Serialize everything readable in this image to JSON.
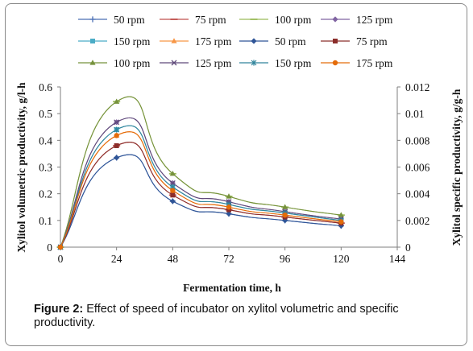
{
  "chart_data": {
    "type": "line",
    "x": [
      0,
      24,
      48,
      72,
      96,
      120
    ],
    "xlabel": "Fermentation time, h",
    "ylabel_left": "Xylitol volumetric productivity, g/l-h",
    "ylabel_right": "Xylitol specific productivity, g/g-h",
    "xticks": [
      "0",
      "24",
      "48",
      "72",
      "96",
      "120",
      "144"
    ],
    "xlim": [
      0,
      144
    ],
    "yticks_left": [
      "0",
      "0.1",
      "0.2",
      "0.3",
      "0.4",
      "0.5",
      "0.6"
    ],
    "ylim_left": [
      0,
      0.6
    ],
    "yticks_right": [
      "0",
      "0.002",
      "0.004",
      "0.006",
      "0.008",
      "0.01",
      "0.012"
    ],
    "ylim_right": [
      0,
      0.012
    ],
    "grid": false,
    "legend_position": "top",
    "series": [
      {
        "name": "50 rpm",
        "axis": "left",
        "marker": "plus",
        "color": "#4a6fb5",
        "values": [
          0,
          0.335,
          0.172,
          0.125,
          0.1,
          0.08
        ]
      },
      {
        "name": "75 rpm",
        "axis": "left",
        "marker": "dash",
        "color": "#c0504d",
        "values": [
          0,
          0.38,
          0.195,
          0.14,
          0.113,
          0.09
        ]
      },
      {
        "name": "100 rpm",
        "axis": "left",
        "marker": "dash",
        "color": "#9bbb59",
        "values": [
          0,
          0.545,
          0.275,
          0.19,
          0.15,
          0.12
        ]
      },
      {
        "name": "125 rpm",
        "axis": "left",
        "marker": "diamond",
        "color": "#8064a2",
        "values": [
          0,
          0.468,
          0.24,
          0.17,
          0.133,
          0.105
        ]
      },
      {
        "name": "150 rpm",
        "axis": "left",
        "marker": "square",
        "color": "#4bacc6",
        "values": [
          0,
          0.44,
          0.225,
          0.16,
          0.128,
          0.1
        ]
      },
      {
        "name": "175 rpm",
        "axis": "left",
        "marker": "triangle",
        "color": "#f79646",
        "values": [
          0,
          0.418,
          0.212,
          0.15,
          0.12,
          0.095
        ]
      },
      {
        "name": "50 rpm",
        "axis": "right",
        "marker": "diamond",
        "color": "#2f5597",
        "values": [
          0,
          0.0067,
          0.00344,
          0.0025,
          0.002,
          0.0016
        ]
      },
      {
        "name": "75 rpm",
        "axis": "right",
        "marker": "square",
        "color": "#8b2d2a",
        "values": [
          0,
          0.0076,
          0.0039,
          0.0028,
          0.00226,
          0.0018
        ]
      },
      {
        "name": "100 rpm",
        "axis": "right",
        "marker": "triangle",
        "color": "#76923c",
        "values": [
          0,
          0.0109,
          0.0055,
          0.0038,
          0.003,
          0.0024
        ]
      },
      {
        "name": "125 rpm",
        "axis": "right",
        "marker": "x",
        "color": "#5f497a",
        "values": [
          0,
          0.00936,
          0.0048,
          0.0034,
          0.00266,
          0.0021
        ]
      },
      {
        "name": "150 rpm",
        "axis": "right",
        "marker": "star",
        "color": "#31859c",
        "values": [
          0,
          0.0088,
          0.0045,
          0.0032,
          0.00256,
          0.002
        ]
      },
      {
        "name": "175 rpm",
        "axis": "right",
        "marker": "circle",
        "color": "#e46c0a",
        "values": [
          0,
          0.00836,
          0.00424,
          0.003,
          0.0024,
          0.0019
        ]
      }
    ]
  },
  "caption": {
    "label": "Figure 2:",
    "text": "Effect of speed of incubator on xylitol volumetric and specific productivity."
  }
}
